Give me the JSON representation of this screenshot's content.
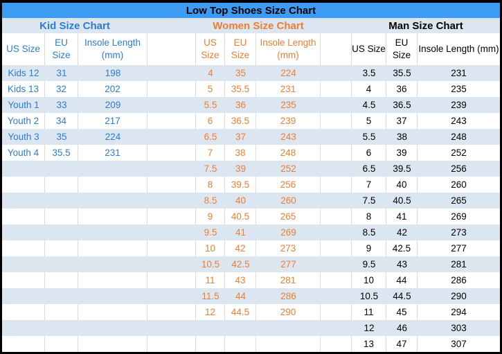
{
  "colors": {
    "title_bar_bg": "#3E9BF3",
    "band_row_bg": "#DCE6F1",
    "kid_text": "#2B7CD3",
    "women_text": "#ED7D31",
    "man_text": "#000000",
    "grid_line": "#D9D9D9",
    "outer_border": "#000000"
  },
  "chart_data": {
    "type": "table",
    "title": "Low Top Shoes Size Chart",
    "sections": [
      {
        "label": "Kid Size Chart",
        "columns": [
          "US Size",
          "EU Size",
          "Insole Length (mm)"
        ],
        "rows": [
          [
            "Kids 12",
            "31",
            "198"
          ],
          [
            "Kids 13",
            "32",
            "202"
          ],
          [
            "Youth 1",
            "33",
            "209"
          ],
          [
            "Youth 2",
            "34",
            "217"
          ],
          [
            "Youth 3",
            "35",
            "224"
          ],
          [
            "Youth 4",
            "35.5",
            "231"
          ]
        ]
      },
      {
        "label": "Women Size Chart",
        "columns": [
          "US Size",
          "EU Size",
          "Insole Length (mm)"
        ],
        "rows": [
          [
            "4",
            "35",
            "224"
          ],
          [
            "5",
            "35.5",
            "231"
          ],
          [
            "5.5",
            "36",
            "235"
          ],
          [
            "6",
            "36.5",
            "239"
          ],
          [
            "6.5",
            "37",
            "243"
          ],
          [
            "7",
            "38",
            "248"
          ],
          [
            "7.5",
            "39",
            "252"
          ],
          [
            "8",
            "39.5",
            "256"
          ],
          [
            "8.5",
            "40",
            "260"
          ],
          [
            "9",
            "40.5",
            "265"
          ],
          [
            "9.5",
            "41",
            "269"
          ],
          [
            "10",
            "42",
            "273"
          ],
          [
            "10.5",
            "42.5",
            "277"
          ],
          [
            "11",
            "43",
            "281"
          ],
          [
            "11.5",
            "44",
            "286"
          ],
          [
            "12",
            "44.5",
            "290"
          ]
        ]
      },
      {
        "label": "Man Size Chart",
        "columns": [
          "US Size",
          "EU Size",
          "Insole Length (mm)"
        ],
        "rows": [
          [
            "3.5",
            "35.5",
            "231"
          ],
          [
            "4",
            "36",
            "235"
          ],
          [
            "4.5",
            "36.5",
            "239"
          ],
          [
            "5",
            "37",
            "243"
          ],
          [
            "5.5",
            "38",
            "248"
          ],
          [
            "6",
            "39",
            "252"
          ],
          [
            "6.5",
            "39.5",
            "256"
          ],
          [
            "7",
            "40",
            "260"
          ],
          [
            "7.5",
            "40.5",
            "265"
          ],
          [
            "8",
            "41",
            "269"
          ],
          [
            "8.5",
            "42",
            "273"
          ],
          [
            "9",
            "42.5",
            "277"
          ],
          [
            "9.5",
            "43",
            "281"
          ],
          [
            "10",
            "44",
            "286"
          ],
          [
            "10.5",
            "44.5",
            "290"
          ],
          [
            "11",
            "45",
            "294"
          ],
          [
            "12",
            "46",
            "303"
          ],
          [
            "13",
            "47",
            "307"
          ]
        ]
      }
    ]
  }
}
